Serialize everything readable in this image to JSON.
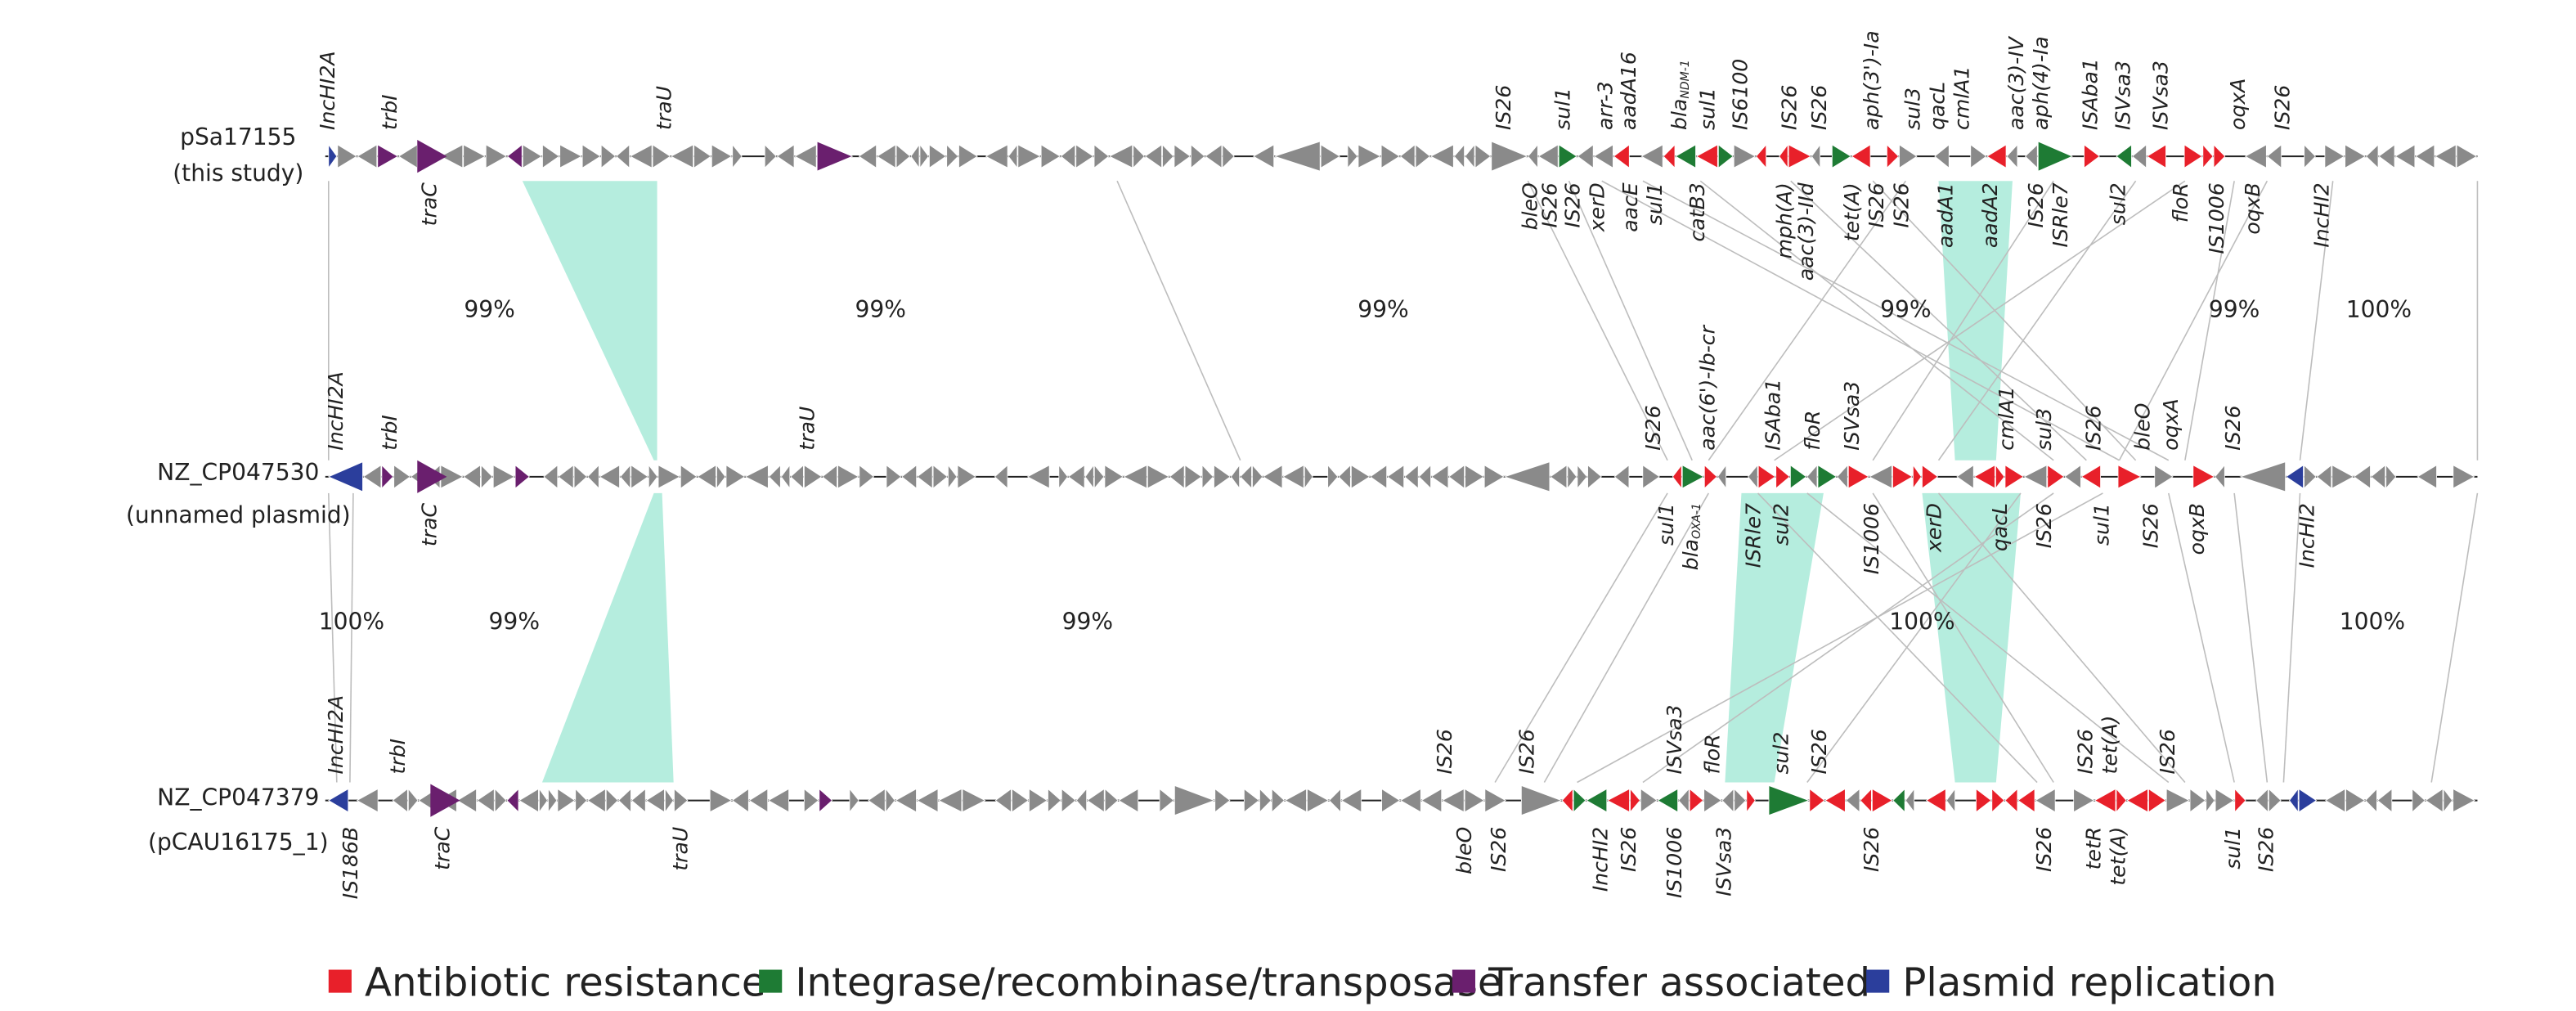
{
  "tracks": [
    {
      "name": "pSa17155",
      "subtitle": "(this study)",
      "labels_above": [
        "IncHI2A",
        "trbI",
        "traU",
        "IS26",
        "sul1",
        "arr-3",
        "aadA16",
        {
          "text": "bla",
          "sub": "NDM-1"
        },
        "sul1",
        "IS6100",
        "IS26",
        "IS26",
        "aph(3')-Ia",
        "sul3",
        "qacL",
        "cmlA1",
        "aac(3)-IV",
        "aph(4)-Ia",
        "ISAba1",
        "ISVsa3",
        "ISVsa3",
        "oqxA",
        "IS26"
      ],
      "labels_below": [
        "traC",
        "bleO",
        "IS26",
        "IS26",
        "xerD",
        "aacE",
        "sul1",
        "catB3",
        "mph(A)",
        "aac(3)-IId",
        "tet(A)",
        "IS26",
        "IS26",
        "aadA1",
        "aadA2",
        "IS26",
        "ISRle7",
        "sul2",
        "floR",
        "IS1006",
        "oqxB",
        "IncHI2"
      ]
    },
    {
      "name": "NZ_CP047530",
      "subtitle": "(unnamed plasmid)",
      "labels_above": [
        "IncHI2A",
        "trbI",
        "traU",
        "IS26",
        "aac(6')-Ib-cr",
        "ISAba1",
        "floR",
        "ISVsa3",
        "cmlA1",
        "sul3",
        "IS26",
        "bleO",
        "oqxA",
        "IS26"
      ],
      "labels_below": [
        "traC",
        "sul1",
        {
          "text": "bla",
          "sub": "OXA-1"
        },
        "ISRle7",
        "sul2",
        "IS1006",
        "xerD",
        "qacL",
        "IS26",
        "sul1",
        "IS26",
        "oqxB",
        "IncHI2"
      ]
    },
    {
      "name": "NZ_CP047379",
      "subtitle": "(pCAU16175_1)",
      "labels_above": [
        "IncHI2A",
        "trbI",
        "IS26",
        "IS26",
        "ISVsa3",
        "floR",
        "sul2",
        "IS26",
        "IS26",
        "tet(A)",
        "IS26"
      ],
      "labels_below": [
        "IS186B",
        "traC",
        "traU",
        "bleO",
        "IS26",
        "IncHI2",
        "IS26",
        "IS1006",
        "ISVsa3",
        "IS26",
        "IS26",
        "tetR",
        "tet(A)",
        "sul1",
        "IS26"
      ]
    }
  ],
  "identities": [
    [
      "99%",
      "99%",
      "99%",
      "99%",
      "99%",
      "100%"
    ],
    [
      "100%",
      "99%",
      "99%",
      "100%",
      "100%"
    ]
  ],
  "legend": [
    {
      "label": "Antibiotic resistance",
      "color": "#e8202a"
    },
    {
      "label": "Integrase/recombinase/transposase",
      "color": "#1e7b34"
    },
    {
      "label": "Transfer associated",
      "color": "#6a1f6e"
    },
    {
      "label": "Plasmid replication",
      "color": "#2b3e9c"
    }
  ]
}
